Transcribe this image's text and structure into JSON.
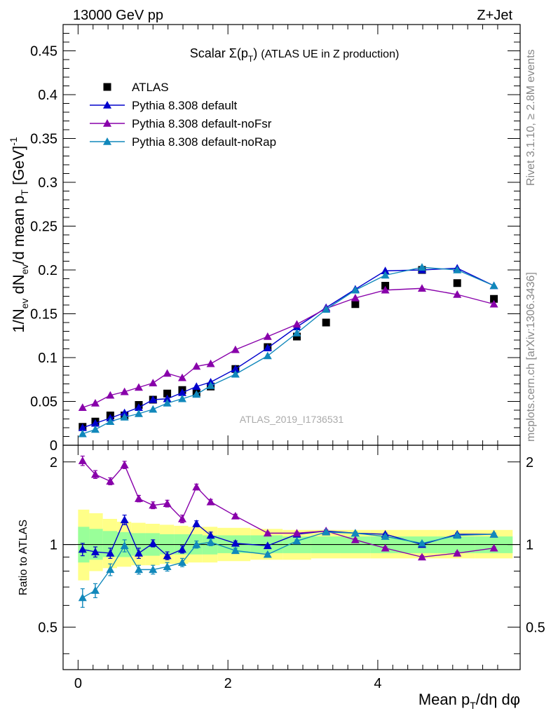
{
  "header": {
    "energy_label": "13000 GeV pp",
    "process_label": "Z+Jet"
  },
  "side_labels": {
    "rivet": "Rivet 3.1.10, ≥ 2.8M events",
    "mcplots": "mcplots.cern.ch [arXiv:1306.3436]"
  },
  "chart_data": [
    {
      "type": "scatter",
      "title": "Scalar Σ(p_T) (ATLAS UE in Z production)",
      "watermark": "ATLAS_2019_I1736531",
      "ylabel": "1/N_ev dN_ev/d mean p_T [GeV]^-1",
      "xlabel": "",
      "xlim": [
        -0.2,
        5.9
      ],
      "ylim": [
        0,
        0.48
      ],
      "x_ticks": [
        "0",
        "2",
        "4"
      ],
      "y_ticks": [
        "0",
        "0.05",
        "0.1",
        "0.15",
        "0.2",
        "0.25",
        "0.3",
        "0.35",
        "0.4",
        "0.45"
      ],
      "legend_position": "top-left",
      "grid": false,
      "x": [
        0.06,
        0.23,
        0.43,
        0.62,
        0.81,
        1.0,
        1.19,
        1.39,
        1.58,
        1.77,
        2.1,
        2.53,
        2.92,
        3.31,
        3.7,
        4.1,
        4.59,
        5.06,
        5.55
      ],
      "series": [
        {
          "name": "ATLAS",
          "color": "#000000",
          "marker": "square",
          "values": [
            0.021,
            0.027,
            0.034,
            0.034,
            0.046,
            0.052,
            0.059,
            0.063,
            0.06,
            0.067,
            0.087,
            0.112,
            0.124,
            0.14,
            0.161,
            0.182,
            0.2,
            0.185,
            0.167
          ]
        },
        {
          "name": "Pythia 8.308 default",
          "color": "#0000cc",
          "marker": "triangle",
          "values": [
            0.02,
            0.025,
            0.031,
            0.037,
            0.043,
            0.052,
            0.053,
            0.06,
            0.067,
            0.072,
            0.087,
            0.111,
            0.135,
            0.157,
            0.178,
            0.199,
            0.2,
            0.202,
            0.182
          ]
        },
        {
          "name": "Pythia 8.308 default-noFsr",
          "color": "#8800aa",
          "marker": "triangle",
          "values": [
            0.043,
            0.048,
            0.057,
            0.061,
            0.066,
            0.071,
            0.082,
            0.077,
            0.09,
            0.093,
            0.109,
            0.124,
            0.138,
            0.156,
            0.168,
            0.177,
            0.179,
            0.172,
            0.161
          ]
        },
        {
          "name": "Pythia 8.308 default-noRap",
          "color": "#1188bb",
          "marker": "triangle",
          "values": [
            0.013,
            0.018,
            0.027,
            0.032,
            0.036,
            0.041,
            0.048,
            0.053,
            0.058,
            0.068,
            0.081,
            0.102,
            0.128,
            0.155,
            0.177,
            0.194,
            0.203,
            0.2,
            0.182
          ]
        }
      ]
    },
    {
      "type": "scatter",
      "title": "",
      "xlabel": "Mean p_T/dη dφ",
      "ylabel": "Ratio to ATLAS",
      "xlim": [
        -0.2,
        5.9
      ],
      "ylim": [
        0.35,
        2.3
      ],
      "x_ticks": [
        "0",
        "2",
        "4"
      ],
      "y_ticks": [
        "0.5",
        "1",
        "2"
      ],
      "reference_line": 1,
      "x": [
        0.06,
        0.23,
        0.43,
        0.62,
        0.81,
        1.0,
        1.19,
        1.39,
        1.58,
        1.77,
        2.1,
        2.53,
        2.92,
        3.31,
        3.7,
        4.1,
        4.59,
        5.06,
        5.55
      ],
      "band_edges": [
        0.0,
        0.15,
        0.33,
        0.52,
        0.71,
        0.9,
        1.09,
        1.28,
        1.47,
        1.66,
        1.86,
        2.3,
        2.73,
        3.11,
        3.5,
        3.9,
        4.3,
        4.8,
        5.3,
        5.8
      ],
      "bands": [
        {
          "name": "syst",
          "color": "#ffff88",
          "low": [
            0.74,
            0.8,
            0.82,
            0.83,
            0.84,
            0.84,
            0.85,
            0.85,
            0.86,
            0.86,
            0.87,
            0.88,
            0.88,
            0.89,
            0.89,
            0.89,
            0.89,
            0.89,
            0.89
          ],
          "high": [
            1.34,
            1.3,
            1.24,
            1.21,
            1.2,
            1.19,
            1.18,
            1.17,
            1.16,
            1.16,
            1.15,
            1.14,
            1.13,
            1.13,
            1.13,
            1.13,
            1.13,
            1.13,
            1.13
          ]
        },
        {
          "name": "stat",
          "color": "#99ff99",
          "low": [
            0.86,
            0.88,
            0.9,
            0.9,
            0.91,
            0.91,
            0.92,
            0.92,
            0.92,
            0.92,
            0.93,
            0.93,
            0.93,
            0.93,
            0.93,
            0.93,
            0.93,
            0.93,
            0.93
          ],
          "high": [
            1.16,
            1.14,
            1.12,
            1.11,
            1.1,
            1.1,
            1.09,
            1.09,
            1.09,
            1.08,
            1.08,
            1.08,
            1.07,
            1.07,
            1.07,
            1.07,
            1.07,
            1.07,
            1.07
          ]
        }
      ],
      "series": [
        {
          "name": "Pythia 8.308 default",
          "color": "#0000cc",
          "marker": "triangle",
          "values": [
            0.96,
            0.94,
            0.93,
            1.23,
            0.93,
            1.01,
            0.91,
            0.96,
            1.19,
            1.08,
            1.01,
            0.99,
            1.09,
            1.12,
            1.1,
            1.09,
            1.0,
            1.09,
            1.09
          ],
          "errors": [
            0.05,
            0.04,
            0.04,
            0.05,
            0.04,
            0.03,
            0.03,
            0.03,
            0.03,
            0.03,
            0.02,
            0.01,
            0.01,
            0.01,
            0.01,
            0.01,
            0.01,
            0.01,
            0.01
          ]
        },
        {
          "name": "Pythia 8.308 default-noFsr",
          "color": "#8800aa",
          "marker": "triangle",
          "values": [
            2.02,
            1.8,
            1.7,
            1.95,
            1.47,
            1.39,
            1.41,
            1.24,
            1.62,
            1.43,
            1.27,
            1.1,
            1.1,
            1.12,
            1.04,
            0.97,
            0.9,
            0.93,
            0.97
          ],
          "errors": [
            0.08,
            0.06,
            0.05,
            0.06,
            0.04,
            0.04,
            0.04,
            0.04,
            0.04,
            0.03,
            0.02,
            0.01,
            0.01,
            0.01,
            0.01,
            0.01,
            0.01,
            0.01,
            0.01
          ]
        },
        {
          "name": "Pythia 8.308 default-noRap",
          "color": "#1188bb",
          "marker": "triangle",
          "values": [
            0.64,
            0.68,
            0.81,
            0.99,
            0.81,
            0.81,
            0.83,
            0.86,
            1.0,
            1.02,
            0.95,
            0.92,
            1.03,
            1.11,
            1.1,
            1.07,
            1.01,
            1.08,
            1.09
          ],
          "errors": [
            0.05,
            0.04,
            0.04,
            0.05,
            0.03,
            0.03,
            0.03,
            0.03,
            0.03,
            0.03,
            0.02,
            0.01,
            0.01,
            0.01,
            0.01,
            0.01,
            0.01,
            0.01,
            0.01
          ]
        }
      ]
    }
  ]
}
